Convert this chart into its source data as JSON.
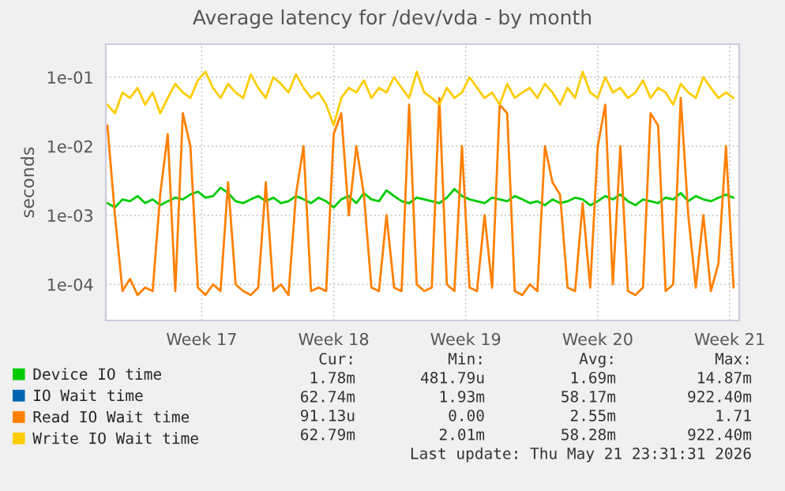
{
  "chart_data": {
    "type": "line",
    "title": "Average latency for /dev/vda - by month",
    "ylabel": "seconds",
    "log": true,
    "ylim": [
      3e-05,
      0.3
    ],
    "yticks": [
      {
        "value": 0.0001,
        "label": "1e-04"
      },
      {
        "value": 0.001,
        "label": "1e-03"
      },
      {
        "value": 0.01,
        "label": "1e-02"
      },
      {
        "value": 0.1,
        "label": "1e-01"
      }
    ],
    "xlim": [
      "2026-04-18T10:00",
      "2026-05-22T00:00"
    ],
    "xticks": [
      {
        "value": "2026-04-23T12:00",
        "label": "Week 17"
      },
      {
        "value": "2026-04-30T12:00",
        "label": "Week 18"
      },
      {
        "value": "2026-05-07T12:00",
        "label": "Week 19"
      },
      {
        "value": "2026-05-14T12:00",
        "label": "Week 20"
      },
      {
        "value": "2026-05-21T12:00",
        "label": "Week 21"
      }
    ],
    "grid": true,
    "legend": "bottom",
    "x": [
      "2026-04-18T12:00",
      "2026-04-18T21:36",
      "2026-04-19T07:12",
      "2026-04-19T16:48",
      "2026-04-20T02:24",
      "2026-04-20T12:00",
      "2026-04-20T21:36",
      "2026-04-21T07:12",
      "2026-04-21T16:48",
      "2026-04-22T02:24",
      "2026-04-22T12:00",
      "2026-04-22T21:36",
      "2026-04-23T07:12",
      "2026-04-23T16:48",
      "2026-04-24T02:24",
      "2026-04-24T12:00",
      "2026-04-24T21:36",
      "2026-04-25T07:12",
      "2026-04-25T16:48",
      "2026-04-26T02:24",
      "2026-04-26T12:00",
      "2026-04-26T21:36",
      "2026-04-27T07:12",
      "2026-04-27T16:48",
      "2026-04-28T02:24",
      "2026-04-28T12:00",
      "2026-04-28T21:36",
      "2026-04-29T07:12",
      "2026-04-29T16:48",
      "2026-04-30T02:24",
      "2026-04-30T12:00",
      "2026-04-30T21:36",
      "2026-05-01T07:12",
      "2026-05-01T16:48",
      "2026-05-02T02:24",
      "2026-05-02T12:00",
      "2026-05-02T21:36",
      "2026-05-03T07:12",
      "2026-05-03T16:48",
      "2026-05-04T02:24",
      "2026-05-04T12:00",
      "2026-05-04T21:36",
      "2026-05-05T07:12",
      "2026-05-05T16:48",
      "2026-05-06T02:24",
      "2026-05-06T12:00",
      "2026-05-06T21:36",
      "2026-05-07T07:12",
      "2026-05-07T16:48",
      "2026-05-08T02:24",
      "2026-05-08T12:00",
      "2026-05-08T21:36",
      "2026-05-09T07:12",
      "2026-05-09T16:48",
      "2026-05-10T02:24",
      "2026-05-10T12:00",
      "2026-05-10T21:36",
      "2026-05-11T07:12",
      "2026-05-11T16:48",
      "2026-05-12T02:24",
      "2026-05-12T12:00",
      "2026-05-12T21:36",
      "2026-05-13T07:12",
      "2026-05-13T16:48",
      "2026-05-14T02:24",
      "2026-05-14T12:00",
      "2026-05-14T21:36",
      "2026-05-15T07:12",
      "2026-05-15T16:48",
      "2026-05-16T02:24",
      "2026-05-16T12:00",
      "2026-05-16T21:36",
      "2026-05-17T07:12",
      "2026-05-17T16:48",
      "2026-05-18T02:24",
      "2026-05-18T12:00",
      "2026-05-18T21:36",
      "2026-05-19T07:12",
      "2026-05-19T16:48",
      "2026-05-20T02:24",
      "2026-05-20T12:00",
      "2026-05-20T21:36",
      "2026-05-21T07:12",
      "2026-05-21T16:48"
    ],
    "series": [
      {
        "name": "Device IO time",
        "color": "#00cc00",
        "values": [
          0.0015,
          0.0013,
          0.0017,
          0.0016,
          0.0019,
          0.0015,
          0.0017,
          0.0014,
          0.0016,
          0.0018,
          0.0017,
          0.002,
          0.0022,
          0.0018,
          0.0019,
          0.0025,
          0.0021,
          0.0016,
          0.0015,
          0.0017,
          0.0019,
          0.0016,
          0.0018,
          0.0015,
          0.0016,
          0.0019,
          0.0017,
          0.0015,
          0.0018,
          0.0016,
          0.0013,
          0.0017,
          0.0019,
          0.0015,
          0.0021,
          0.0017,
          0.0016,
          0.0023,
          0.0019,
          0.0016,
          0.0015,
          0.0018,
          0.0017,
          0.0016,
          0.0015,
          0.0018,
          0.0024,
          0.0019,
          0.0017,
          0.0016,
          0.0015,
          0.0018,
          0.0017,
          0.0016,
          0.0019,
          0.0017,
          0.0015,
          0.0016,
          0.0014,
          0.0017,
          0.0015,
          0.0016,
          0.0018,
          0.0017,
          0.0014,
          0.0016,
          0.0019,
          0.0017,
          0.002,
          0.0016,
          0.0014,
          0.0017,
          0.0016,
          0.0015,
          0.0018,
          0.0017,
          0.0021,
          0.0016,
          0.0019,
          0.0017,
          0.0016,
          0.0018,
          0.002,
          0.0018
        ]
      },
      {
        "name": "IO Wait time",
        "color": "#0066b3",
        "values": [
          null,
          null,
          null,
          null,
          null,
          null,
          null,
          null,
          null,
          null,
          null,
          null,
          null,
          null,
          null,
          null,
          null,
          null,
          null,
          null,
          null,
          null,
          null,
          null,
          null,
          null,
          null,
          null,
          null,
          null,
          null,
          null,
          null,
          null,
          null,
          null,
          null,
          null,
          null,
          null,
          null,
          null,
          null,
          null,
          null,
          null,
          null,
          null,
          null,
          null,
          null,
          null,
          null,
          null,
          null,
          null,
          null,
          null,
          null,
          null,
          null,
          null,
          null,
          null,
          null,
          null,
          null,
          null,
          null,
          null,
          null,
          null,
          null,
          null,
          null,
          null,
          null,
          null,
          null,
          null,
          null,
          null,
          null,
          null
        ]
      },
      {
        "name": "Read IO Wait time",
        "color": "#ff8000",
        "values": [
          0.02,
          0.001,
          8e-05,
          0.00012,
          7e-05,
          9e-05,
          8e-05,
          0.002,
          0.015,
          8e-05,
          0.03,
          0.01,
          9e-05,
          7e-05,
          0.0001,
          8e-05,
          0.003,
          0.0001,
          8e-05,
          7e-05,
          9e-05,
          0.003,
          8e-05,
          0.0001,
          7e-05,
          0.002,
          0.01,
          8e-05,
          9e-05,
          8e-05,
          0.015,
          0.03,
          0.001,
          0.01,
          0.002,
          9e-05,
          8e-05,
          0.001,
          9e-05,
          8e-05,
          0.04,
          0.0001,
          8e-05,
          9e-05,
          0.05,
          0.0001,
          8e-05,
          0.01,
          9e-05,
          8e-05,
          0.001,
          9e-05,
          0.04,
          0.03,
          8e-05,
          7e-05,
          0.0001,
          8e-05,
          0.01,
          0.003,
          0.002,
          9e-05,
          8e-05,
          0.0015,
          9e-05,
          0.01,
          0.04,
          0.0001,
          0.01,
          8e-05,
          7e-05,
          9e-05,
          0.03,
          0.02,
          8e-05,
          0.0001,
          0.05,
          0.001,
          9e-05,
          0.001,
          8e-05,
          0.0002,
          0.01,
          9e-05
        ]
      },
      {
        "name": "Write IO Wait time",
        "color": "#ffcc00",
        "values": [
          0.04,
          0.03,
          0.06,
          0.05,
          0.07,
          0.04,
          0.06,
          0.03,
          0.05,
          0.08,
          0.06,
          0.05,
          0.09,
          0.12,
          0.07,
          0.05,
          0.08,
          0.06,
          0.05,
          0.11,
          0.07,
          0.05,
          0.1,
          0.08,
          0.06,
          0.11,
          0.07,
          0.05,
          0.06,
          0.04,
          0.02,
          0.05,
          0.07,
          0.06,
          0.09,
          0.05,
          0.07,
          0.06,
          0.1,
          0.07,
          0.05,
          0.12,
          0.06,
          0.05,
          0.04,
          0.07,
          0.05,
          0.06,
          0.1,
          0.07,
          0.05,
          0.06,
          0.04,
          0.08,
          0.05,
          0.06,
          0.07,
          0.05,
          0.08,
          0.06,
          0.04,
          0.07,
          0.05,
          0.12,
          0.06,
          0.05,
          0.1,
          0.06,
          0.07,
          0.05,
          0.06,
          0.09,
          0.05,
          0.07,
          0.06,
          0.04,
          0.08,
          0.06,
          0.05,
          0.1,
          0.07,
          0.05,
          0.06,
          0.05
        ]
      }
    ],
    "annotations": [
      "Cur:",
      "Min:",
      "Avg:",
      "Max:",
      "1.78m",
      "481.79u",
      "1.69m",
      "14.87m",
      "62.74m",
      "1.93m",
      "58.17m",
      "922.40m",
      "91.13u",
      "0.00",
      "2.55m",
      "1.71",
      "62.79m",
      "2.01m",
      "58.28m",
      "922.40m",
      "Last update: Thu May 21 23:31:31 2026"
    ]
  }
}
